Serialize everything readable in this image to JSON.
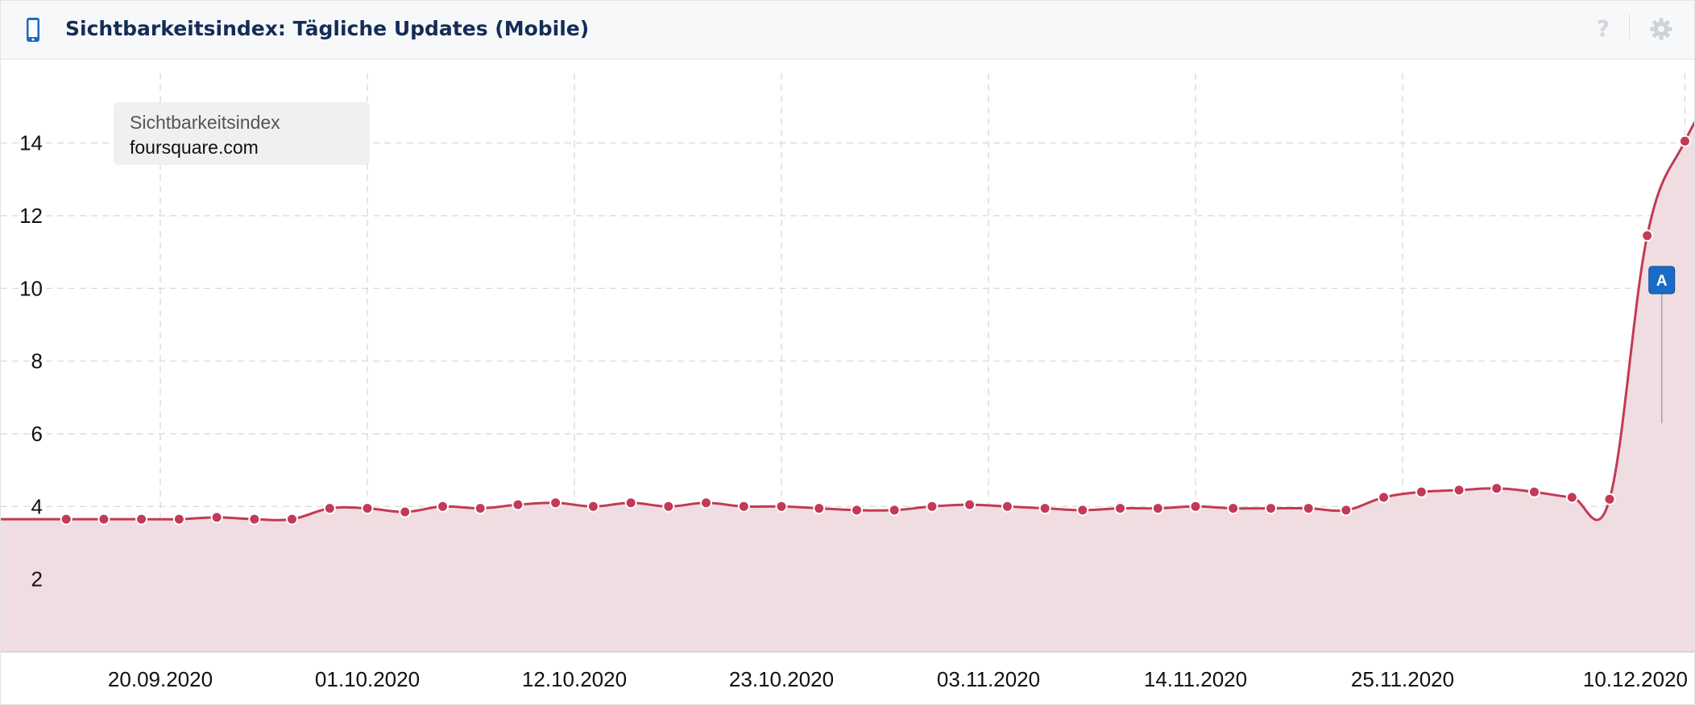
{
  "header": {
    "title": "Sichtbarkeitsindex: Tägliche Updates (Mobile)",
    "device_icon": "smartphone-icon",
    "help_icon": "help-icon",
    "settings_icon": "gear-icon"
  },
  "legend": {
    "series_label": "Sichtbarkeitsindex",
    "domain": "foursquare.com"
  },
  "colors": {
    "line": "#c23a55",
    "fill": "#f0dde1",
    "title": "#142d57",
    "marker_flag": "#1a6bc7",
    "grid": "#d6d6d6"
  },
  "chart_data": {
    "type": "area",
    "title": "Sichtbarkeitsindex: Tägliche Updates (Mobile)",
    "xlabel": "",
    "ylabel": "",
    "series_name": "foursquare.com",
    "x_tick_labels": [
      "20.09.2020",
      "01.10.2020",
      "12.10.2020",
      "23.10.2020",
      "03.11.2020",
      "14.11.2020",
      "25.11.2020",
      "10.12.2020"
    ],
    "y_tick_labels": [
      "2",
      "4",
      "6",
      "8",
      "10",
      "12",
      "14"
    ],
    "ylim": [
      0,
      16
    ],
    "grid": true,
    "legend_position": "top-left",
    "annotations": [
      {
        "label": "A",
        "date": "08.12.2020"
      }
    ],
    "x": [
      "15.09.2020",
      "17.09.2020",
      "19.09.2020",
      "21.09.2020",
      "23.09.2020",
      "25.09.2020",
      "27.09.2020",
      "29.09.2020",
      "01.10.2020",
      "03.10.2020",
      "05.10.2020",
      "07.10.2020",
      "09.10.2020",
      "11.10.2020",
      "13.10.2020",
      "15.10.2020",
      "17.10.2020",
      "19.10.2020",
      "21.10.2020",
      "23.10.2020",
      "25.10.2020",
      "27.10.2020",
      "29.10.2020",
      "31.10.2020",
      "02.11.2020",
      "04.11.2020",
      "06.11.2020",
      "08.11.2020",
      "10.11.2020",
      "12.11.2020",
      "14.11.2020",
      "16.11.2020",
      "18.11.2020",
      "20.11.2020",
      "22.11.2020",
      "24.11.2020",
      "26.11.2020",
      "28.11.2020",
      "30.11.2020",
      "02.12.2020",
      "04.12.2020",
      "06.12.2020",
      "08.12.2020",
      "10.12.2020",
      "12.12.2020"
    ],
    "values": [
      3.65,
      3.65,
      3.65,
      3.65,
      3.7,
      3.65,
      3.65,
      3.95,
      3.95,
      3.85,
      4.0,
      3.95,
      4.05,
      4.1,
      4.0,
      4.1,
      4.0,
      4.1,
      4.0,
      4.0,
      3.95,
      3.9,
      3.9,
      4.0,
      4.05,
      4.0,
      3.95,
      3.9,
      3.95,
      3.95,
      4.0,
      3.95,
      3.95,
      3.95,
      3.9,
      4.25,
      4.4,
      4.45,
      4.5,
      4.4,
      4.25,
      4.2,
      11.45,
      14.05,
      15.8
    ]
  }
}
